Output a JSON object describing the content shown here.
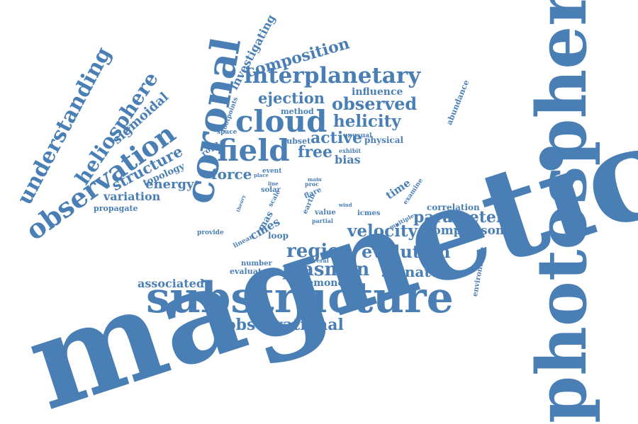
{
  "theme": {
    "word_color": "#4a7fb5",
    "background": "#ffffff"
  },
  "words": {
    "magnetic": "magnetic",
    "photosphere": "photosphere",
    "substructure": "substructure",
    "coronal": "coronal",
    "field": "field",
    "cloud": "cloud",
    "interplanetary": "interplanetary",
    "observation": "observation",
    "understanding": "understanding",
    "heliosphere": "heliosphere",
    "composition": "composition",
    "investigating": "investigating",
    "ejection": "ejection",
    "observed": "observed",
    "influence": "influence",
    "abundance": "abundance",
    "helicity": "helicity",
    "active": "active",
    "free": "free",
    "bias": "bias",
    "method": "method",
    "unusual": "unusual",
    "physical": "physical",
    "subset": "subset",
    "exhibit": "exhibit",
    "footpoints": "footpoints",
    "space": "space",
    "rope": "rope",
    "sigmoidal": "sigmoidal",
    "structure": "structure",
    "topology": "topology",
    "energy": "energy",
    "force": "force",
    "variation": "variation",
    "propagate": "propagate",
    "event": "event",
    "place": "place",
    "line": "line",
    "main": "main",
    "proc": "proc",
    "flare": "flare",
    "solar": "solar",
    "theory": "theory",
    "scale": "scale",
    "earth": "earth",
    "mas": "mas",
    "cmes": "cmes",
    "linear": "linear",
    "provide": "provide",
    "loop": "loop",
    "value": "value",
    "partial": "partial",
    "wind": "wind",
    "time": "time",
    "examine": "examine",
    "icmes": "icmes",
    "multiple": "multiple",
    "correlation": "correlation",
    "parameter": "parameter",
    "velocity": "velocity",
    "comparison": "comparison",
    "region": "region",
    "evolution": "evolution",
    "environment": "environment",
    "plasmon": "plasmon",
    "signature": "signature",
    "number": "number",
    "several": "several",
    "evaluate": "evaluate",
    "associated": "associated",
    "anemone": "anemone",
    "observational": "observational"
  }
}
